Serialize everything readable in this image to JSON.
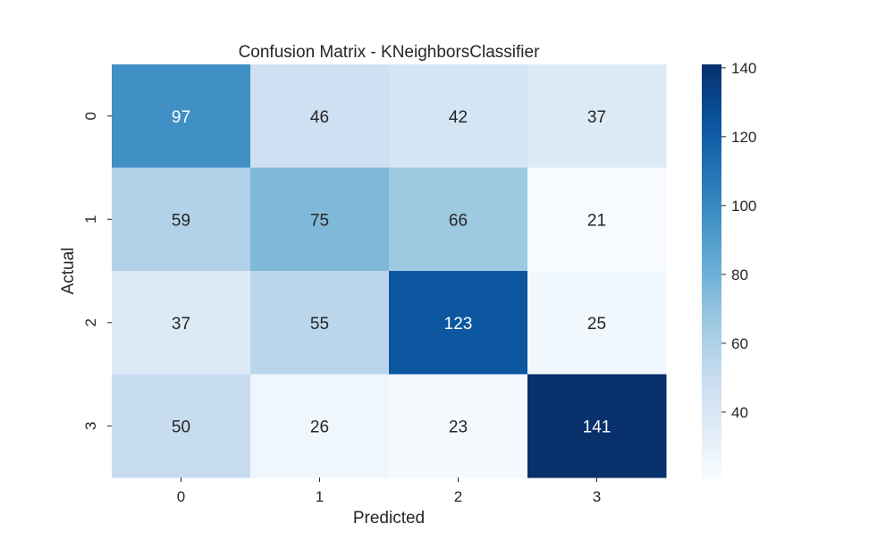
{
  "chart_data": {
    "type": "heatmap",
    "title": "Confusion Matrix - KNeighborsClassifier",
    "xlabel": "Predicted",
    "ylabel": "Actual",
    "x_categories": [
      "0",
      "1",
      "2",
      "3"
    ],
    "y_categories": [
      "0",
      "1",
      "2",
      "3"
    ],
    "values": [
      [
        97,
        46,
        42,
        37
      ],
      [
        59,
        75,
        66,
        21
      ],
      [
        37,
        55,
        123,
        25
      ],
      [
        50,
        26,
        23,
        141
      ]
    ],
    "colormap": "Blues",
    "colorbar": {
      "range": [
        21,
        141
      ],
      "ticks": [
        40,
        60,
        80,
        100,
        120,
        140
      ],
      "tick_labels": [
        "40",
        "60",
        "80",
        "100",
        "120",
        "140"
      ]
    },
    "annotated": true,
    "grid": false
  }
}
